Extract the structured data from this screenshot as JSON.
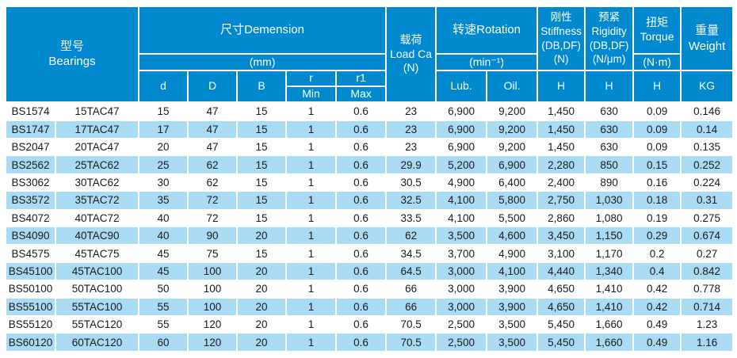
{
  "colors": {
    "header_bg": "#0089CF",
    "stripe_bg": "#A9DBF4",
    "header_text": "#FFFFFF",
    "body_text": "#1A1A1A",
    "grid_line": "#FFFFFF"
  },
  "header": {
    "bearings_zh": "型号",
    "bearings_en": "Bearings",
    "dimension_title": "尺寸Demension",
    "dimension_unit": "(mm)",
    "col_d": "d",
    "col_D": "D",
    "col_B": "B",
    "col_r": "r",
    "col_r_min": "Min",
    "col_r1": "r1",
    "col_r1_max": "Max",
    "load": {
      "zh": "载荷",
      "en": "Load Ca",
      "unit": "(N)"
    },
    "rotation_title": "转速Rotation",
    "rotation_unit": "(min⁻¹)",
    "lub": "Lub.",
    "oil": "Oil.",
    "stiffness": {
      "zh": "刚性",
      "en": "Stiffness",
      "config": "(DB,DF)",
      "unit": "(N)"
    },
    "rigidity": {
      "zh": "预紧",
      "en": "Rigidity",
      "config": "(DB,DF)",
      "unit": "(N/μm)"
    },
    "torque": {
      "zh": "扭矩",
      "en": "Torque",
      "unit": "(N·m)"
    },
    "h_stiffness": "H",
    "h_rigidity": "H",
    "h_torque": "H",
    "weight_zh": "重量",
    "weight_en": "Weight",
    "weight_unit": "KG"
  },
  "rows": [
    [
      "BS1574",
      "15TAC47",
      "15",
      "47",
      "15",
      "1",
      "0.6",
      "23",
      "6,900",
      "9,200",
      "1,450",
      "630",
      "0.09",
      "0.146"
    ],
    [
      "BS1747",
      "17TAC47",
      "17",
      "47",
      "15",
      "1",
      "0.6",
      "23",
      "6,900",
      "9,200",
      "1,450",
      "630",
      "0.09",
      "0.14"
    ],
    [
      "BS2047",
      "20TAC47",
      "20",
      "47",
      "15",
      "1",
      "0.6",
      "23",
      "6,900",
      "9,200",
      "1,450",
      "630",
      "0.09",
      "0.135"
    ],
    [
      "BS2562",
      "25TAC62",
      "25",
      "62",
      "15",
      "1",
      "0.6",
      "29.9",
      "5,200",
      "6,900",
      "2,280",
      "850",
      "0.15",
      "0.252"
    ],
    [
      "BS3062",
      "30TAC62",
      "30",
      "62",
      "15",
      "1",
      "0.6",
      "30.5",
      "4,900",
      "6,400",
      "2,400",
      "890",
      "0.16",
      "0.224"
    ],
    [
      "BS3572",
      "35TAC72",
      "35",
      "72",
      "15",
      "1",
      "0.6",
      "32.5",
      "4,100",
      "5,800",
      "2,750",
      "1,030",
      "0.18",
      "0.31"
    ],
    [
      "BS4072",
      "40TAC72",
      "40",
      "72",
      "15",
      "1",
      "0.6",
      "33.5",
      "4,100",
      "5,500",
      "2,860",
      "1,080",
      "0.19",
      "0.275"
    ],
    [
      "BS4090",
      "40TAC90",
      "40",
      "90",
      "20",
      "1",
      "0.6",
      "62",
      "3,500",
      "4,600",
      "3,450",
      "1,150",
      "0.29",
      "0.674"
    ],
    [
      "BS4575",
      "45TAC75",
      "45",
      "75",
      "15",
      "1",
      "0.6",
      "34.5",
      "3,700",
      "4,900",
      "3,100",
      "1,170",
      "0.2",
      "0.27"
    ],
    [
      "BS45100",
      "45TAC100",
      "45",
      "100",
      "20",
      "1",
      "0.6",
      "64.5",
      "3,000",
      "4,100",
      "4,440",
      "1,340",
      "0.4",
      "0.842"
    ],
    [
      "BS50100",
      "50TAC100",
      "50",
      "100",
      "20",
      "1",
      "0.6",
      "66",
      "3,000",
      "3,900",
      "4,650",
      "1,410",
      "0.42",
      "0.778"
    ],
    [
      "BS55100",
      "55TAC100",
      "55",
      "100",
      "20",
      "1",
      "0.6",
      "66",
      "3,000",
      "3,900",
      "4,650",
      "1,410",
      "0.42",
      "0.714"
    ],
    [
      "BS55120",
      "55TAC120",
      "55",
      "120",
      "20",
      "1",
      "0.6",
      "70.5",
      "2,500",
      "3,500",
      "5,450",
      "1,660",
      "0.49",
      "1.23"
    ],
    [
      "BS60120",
      "60TAC120",
      "60",
      "120",
      "20",
      "1",
      "0.6",
      "70.5",
      "2,500",
      "3,500",
      "5,450",
      "1,660",
      "0.49",
      "1.16"
    ]
  ]
}
